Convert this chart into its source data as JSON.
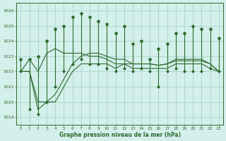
{
  "hours": [
    0,
    1,
    2,
    3,
    4,
    5,
    6,
    7,
    8,
    9,
    10,
    11,
    12,
    13,
    14,
    15,
    16,
    17,
    18,
    19,
    20,
    21,
    22,
    23
  ],
  "max_values": [
    1022.8,
    1022.8,
    1023.0,
    1024.0,
    1024.8,
    1025.0,
    1025.6,
    1025.8,
    1025.6,
    1025.3,
    1025.1,
    1024.5,
    1025.0,
    1023.8,
    1024.0,
    1022.8,
    1023.5,
    1023.8,
    1024.5,
    1024.5,
    1025.0,
    1024.8,
    1024.8,
    1024.2
  ],
  "min_values": [
    1022.0,
    1019.5,
    1019.2,
    1020.0,
    1021.0,
    1022.0,
    1022.5,
    1022.8,
    1022.5,
    1022.5,
    1022.2,
    1022.0,
    1022.2,
    1022.0,
    1022.2,
    1022.0,
    1021.0,
    1022.0,
    1022.2,
    1022.0,
    1022.0,
    1022.0,
    1022.2,
    1022.0
  ],
  "line1": [
    1022.0,
    1022.8,
    1022.0,
    1023.2,
    1023.5,
    1023.2,
    1023.2,
    1023.2,
    1023.0,
    1023.0,
    1022.8,
    1022.5,
    1022.5,
    1022.5,
    1022.5,
    1022.5,
    1022.4,
    1022.5,
    1022.7,
    1022.7,
    1022.7,
    1022.7,
    1022.5,
    1022.0
  ],
  "line2": [
    1022.0,
    1022.0,
    1020.0,
    1020.0,
    1020.5,
    1021.5,
    1022.5,
    1023.0,
    1023.2,
    1023.2,
    1023.0,
    1022.8,
    1022.8,
    1022.5,
    1022.5,
    1022.5,
    1022.4,
    1022.5,
    1022.8,
    1022.8,
    1022.8,
    1022.8,
    1022.5,
    1022.0
  ],
  "line3": [
    1022.0,
    1022.0,
    1019.5,
    1020.0,
    1020.0,
    1021.0,
    1022.0,
    1022.5,
    1022.5,
    1022.5,
    1022.5,
    1022.2,
    1022.5,
    1022.2,
    1022.2,
    1022.2,
    1022.2,
    1022.2,
    1022.5,
    1022.5,
    1022.5,
    1022.5,
    1022.2,
    1022.0
  ],
  "line_color": "#2d6a2d",
  "bg_color": "#d4f0eb",
  "grid_color": "#9ecfc4",
  "ylabel_ticks": [
    1019,
    1020,
    1021,
    1022,
    1023,
    1024,
    1025,
    1026
  ],
  "xlabel": "Graphe pression niveau de la mer (hPa)",
  "ylim": [
    1018.5,
    1026.5
  ],
  "xlim": [
    -0.5,
    23.5
  ]
}
